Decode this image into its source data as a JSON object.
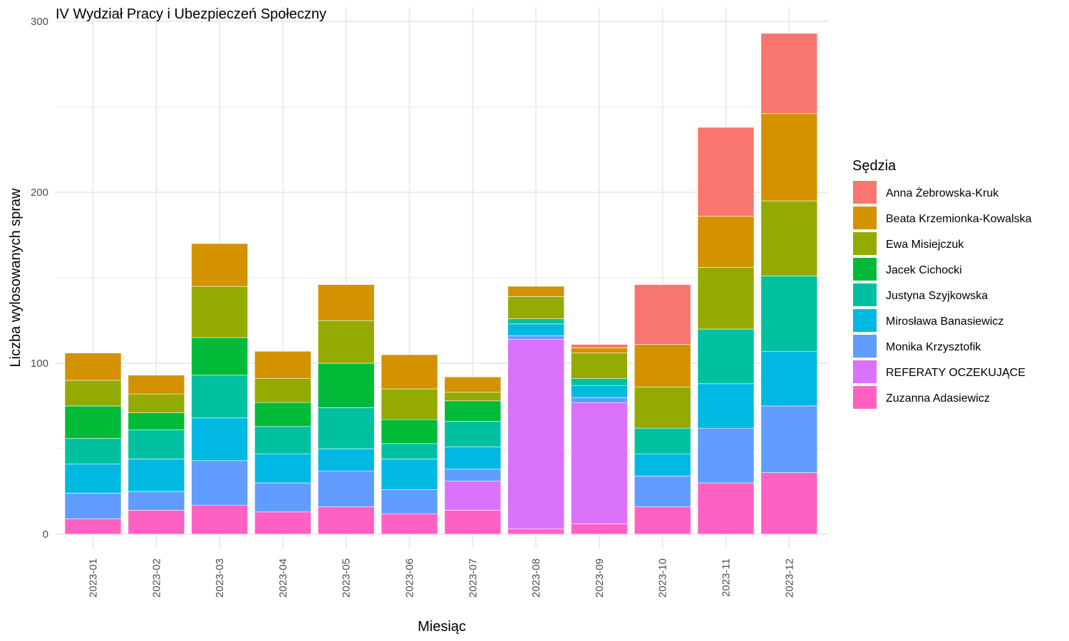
{
  "chart_data": {
    "type": "bar",
    "stacked": true,
    "title": "IV Wydział Pracy i Ubezpieczeń Społeczny",
    "xlabel": "Miesiąc",
    "ylabel": "Liczba wylosowanych spraw",
    "ylim": [
      0,
      300
    ],
    "yticks": [
      "0",
      "100",
      "200",
      "300"
    ],
    "grid": true,
    "legend": {
      "title": "Sędzia",
      "placement": "right"
    },
    "categories": [
      "2023-01",
      "2023-02",
      "2023-03",
      "2023-04",
      "2023-05",
      "2023-06",
      "2023-07",
      "2023-08",
      "2023-09",
      "2023-10",
      "2023-11",
      "2023-12"
    ],
    "series": [
      {
        "name": "Zuzanna Adasiewicz",
        "color": "#FF61C3",
        "values": [
          9,
          14,
          17,
          13,
          16,
          12,
          14,
          3,
          6,
          16,
          30,
          36
        ]
      },
      {
        "name": "REFERATY OCZEKUJĄCE",
        "color": "#DB72FB",
        "values": [
          0,
          0,
          0,
          0,
          0,
          0,
          17,
          111,
          71,
          0,
          0,
          0
        ]
      },
      {
        "name": "Monika Krzysztofik",
        "color": "#619CFF",
        "values": [
          15,
          11,
          26,
          17,
          21,
          14,
          7,
          2,
          3,
          18,
          32,
          39
        ]
      },
      {
        "name": "Mirosława Banasiewicz",
        "color": "#00B9E3",
        "values": [
          17,
          19,
          25,
          17,
          13,
          18,
          13,
          7,
          7,
          13,
          26,
          32
        ]
      },
      {
        "name": "Justyna Szyjkowska",
        "color": "#00C19F",
        "values": [
          15,
          17,
          25,
          16,
          24,
          9,
          15,
          3,
          4,
          15,
          32,
          44
        ]
      },
      {
        "name": "Jacek Cichocki",
        "color": "#00BA38",
        "values": [
          19,
          10,
          22,
          14,
          26,
          14,
          12,
          0,
          0,
          0,
          0,
          0
        ]
      },
      {
        "name": "Ewa Misiejczuk",
        "color": "#93AA00",
        "values": [
          15,
          11,
          30,
          14,
          25,
          18,
          5,
          13,
          15,
          24,
          36,
          44
        ]
      },
      {
        "name": "Beata Krzemionka-Kowalska",
        "color": "#D39200",
        "values": [
          16,
          11,
          25,
          16,
          21,
          20,
          9,
          6,
          3,
          25,
          30,
          51
        ]
      },
      {
        "name": "Anna Żebrowska-Kruk",
        "color": "#F8766D",
        "values": [
          0,
          0,
          0,
          0,
          0,
          0,
          0,
          0,
          2,
          35,
          52,
          47
        ]
      }
    ]
  }
}
